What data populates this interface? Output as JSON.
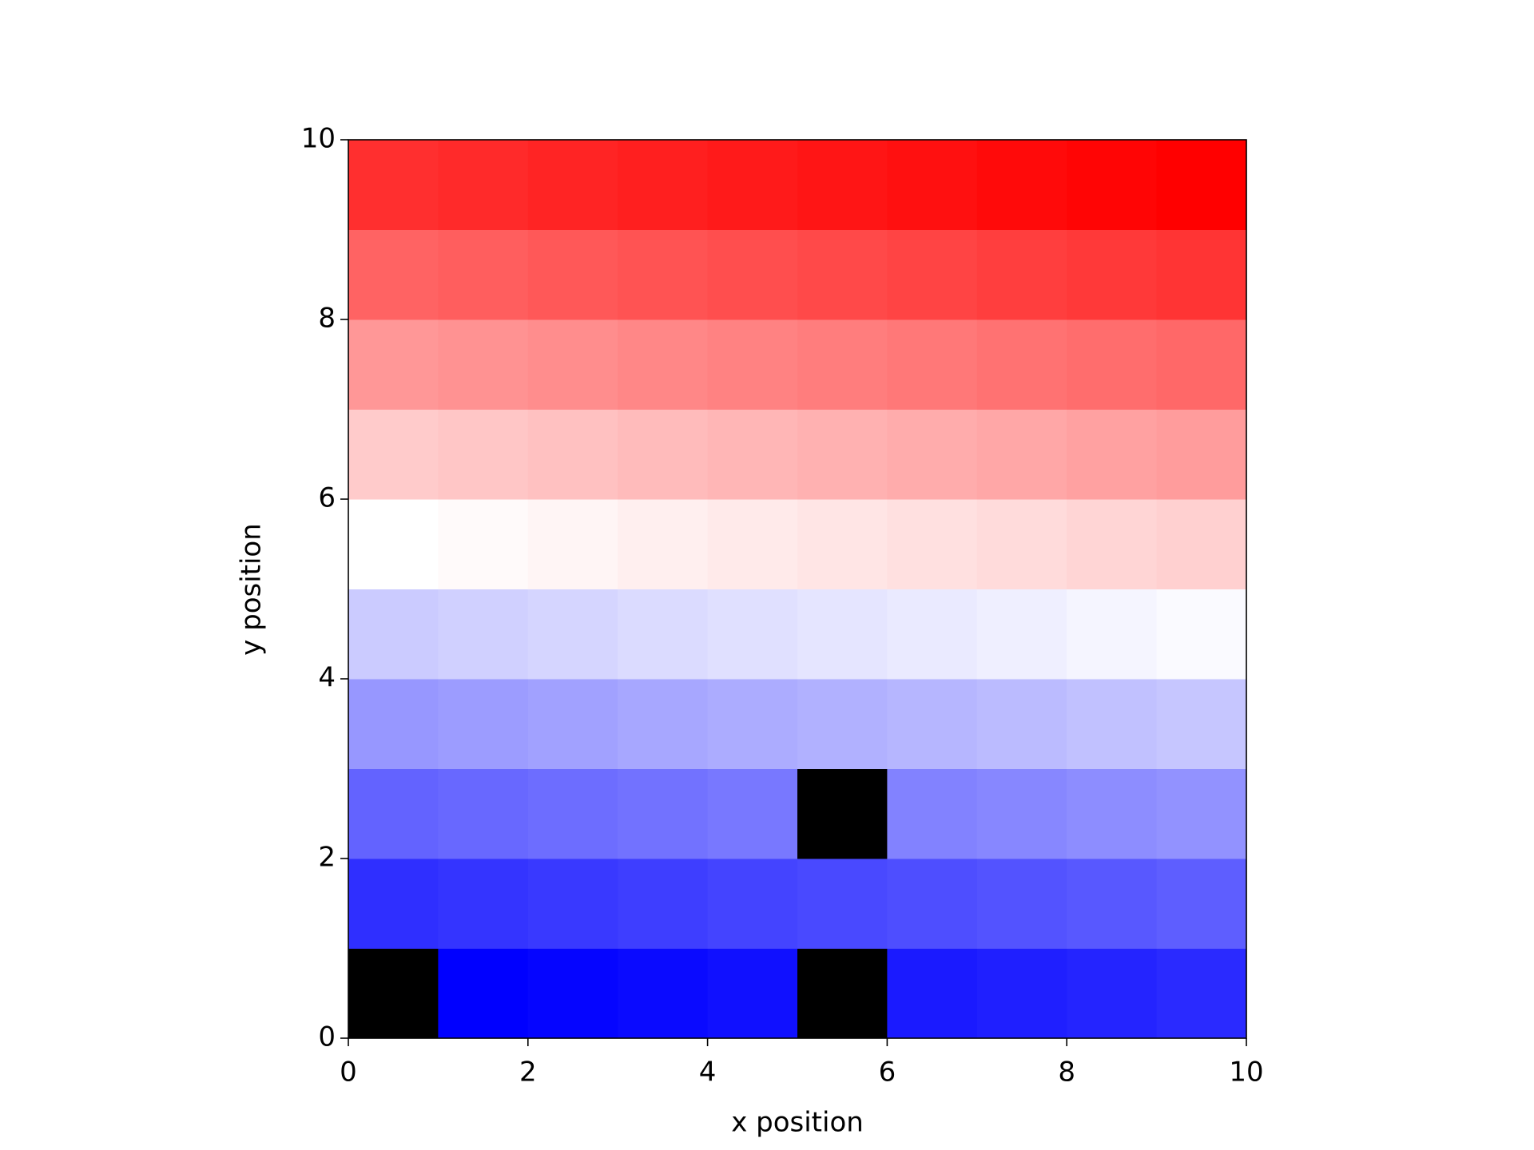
{
  "chart_data": {
    "type": "heatmap",
    "xlabel": "x position",
    "ylabel": "y position",
    "colormap": "bwr",
    "bad_color": "#000000",
    "xlim": [
      0,
      10
    ],
    "ylim": [
      0,
      10
    ],
    "xticks": [
      0,
      2,
      4,
      6,
      8,
      10
    ],
    "yticks": [
      0,
      2,
      4,
      6,
      8,
      10
    ],
    "values": [
      [
        null,
        1,
        2,
        3,
        4,
        null,
        6,
        7,
        8,
        9
      ],
      [
        10,
        11,
        12,
        13,
        14,
        15,
        16,
        17,
        18,
        19
      ],
      [
        20,
        21,
        22,
        23,
        24,
        null,
        26,
        27,
        28,
        29
      ],
      [
        30,
        31,
        32,
        33,
        34,
        35,
        36,
        37,
        38,
        39
      ],
      [
        40,
        41,
        42,
        43,
        44,
        45,
        46,
        47,
        48,
        49
      ],
      [
        50,
        51,
        52,
        53,
        54,
        55,
        56,
        57,
        58,
        59
      ],
      [
        60,
        61,
        62,
        63,
        64,
        65,
        66,
        67,
        68,
        69
      ],
      [
        70,
        71,
        72,
        73,
        74,
        75,
        76,
        77,
        78,
        79
      ],
      [
        80,
        81,
        82,
        83,
        84,
        85,
        86,
        87,
        88,
        89
      ],
      [
        90,
        91,
        92,
        93,
        94,
        95,
        96,
        97,
        98,
        99
      ]
    ]
  }
}
